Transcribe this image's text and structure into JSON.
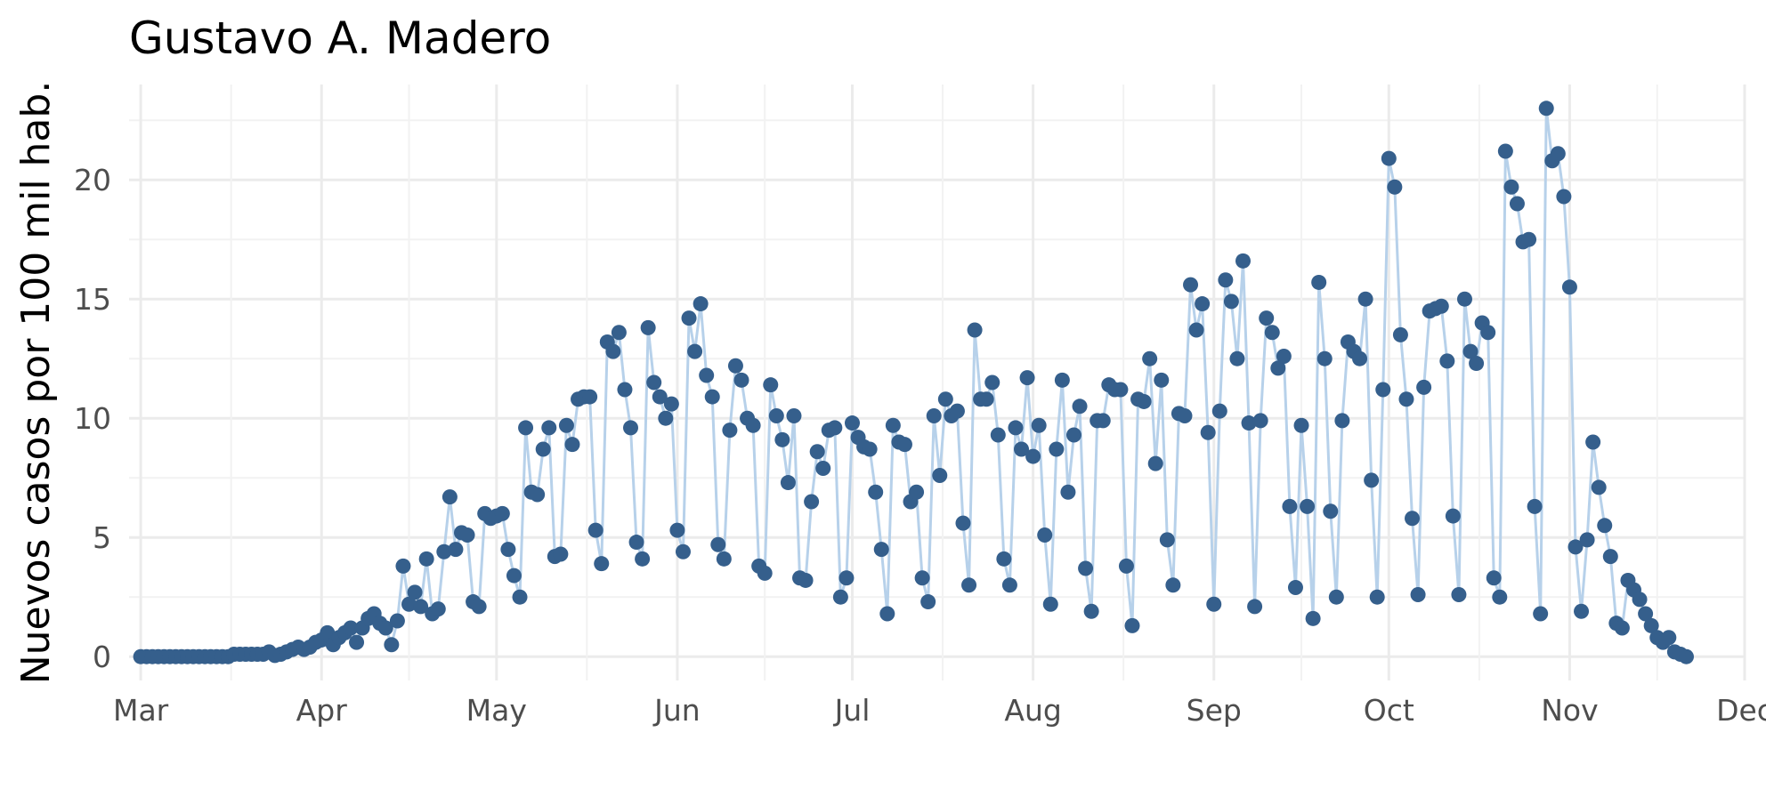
{
  "chart_data": {
    "type": "line",
    "title": "Gustavo A. Madero",
    "xlabel": "",
    "ylabel": "Nuevos casos por 100 mil hab.",
    "x_tick_labels": [
      "Mar",
      "Apr",
      "May",
      "Jun",
      "Jul",
      "Aug",
      "Sep",
      "Oct",
      "Nov",
      "Dec"
    ],
    "y_ticks": [
      0,
      5,
      10,
      15,
      20
    ],
    "ylim": [
      -1,
      24
    ],
    "x_start": "2020-02-28",
    "x_end": "2020-12-01",
    "grid": true,
    "legend": "none",
    "line_color": "#b7d1ea",
    "point_color": "#355f8c",
    "series": [
      {
        "start_date": "2020-03-01",
        "values": [
          0,
          0,
          0,
          0,
          0,
          0,
          0,
          0,
          0,
          0,
          0,
          0,
          0,
          0,
          0,
          0,
          0.1,
          0.1,
          0.1,
          0.1,
          0.1,
          0.1,
          0.2,
          0.05,
          0.1,
          0.2,
          0.3,
          0.4,
          0.3,
          0.4,
          0.6,
          0.7,
          1.0,
          0.5,
          0.8,
          1.0,
          1.2,
          0.6,
          1.2,
          1.6,
          1.8,
          1.4,
          1.2,
          0.5,
          1.5,
          3.8,
          2.2,
          2.7,
          2.1,
          4.1,
          1.8,
          2.0,
          4.4,
          6.7,
          4.5,
          5.2,
          5.1,
          2.3,
          2.1,
          6.0,
          5.8,
          5.9,
          6.0,
          4.5,
          3.4,
          2.5,
          9.6,
          6.9,
          6.8,
          8.7,
          9.6,
          4.2,
          4.3,
          9.7,
          8.9,
          10.8,
          10.9,
          10.9,
          5.3,
          3.9,
          13.2,
          12.8,
          13.6,
          11.2,
          9.6,
          4.8,
          4.1,
          13.8,
          11.5,
          10.9,
          10.0,
          10.6,
          5.3,
          4.4,
          14.2,
          12.8,
          14.8,
          11.8,
          10.9,
          4.7,
          4.1,
          9.5,
          12.2,
          11.6,
          10.0,
          9.7,
          3.8,
          3.5,
          11.4,
          10.1,
          9.1,
          7.3,
          10.1,
          3.3,
          3.2,
          6.5,
          8.6,
          7.9,
          9.5,
          9.6,
          2.5,
          3.3,
          9.8,
          9.2,
          8.8,
          8.7,
          6.9,
          4.5,
          1.8,
          9.7,
          9.0,
          8.9,
          6.5,
          6.9,
          3.3,
          2.3,
          10.1,
          7.6,
          10.8,
          10.1,
          10.3,
          5.6,
          3.0,
          13.7,
          10.8,
          10.8,
          11.5,
          9.3,
          4.1,
          3.0,
          9.6,
          8.7,
          11.7,
          8.4,
          9.7,
          5.1,
          2.2,
          8.7,
          11.6,
          6.9,
          9.3,
          10.5,
          3.7,
          1.9,
          9.9,
          9.9,
          11.4,
          11.2,
          11.2,
          3.8,
          1.3,
          10.8,
          10.7,
          12.5,
          8.1,
          11.6,
          4.9,
          3.0,
          10.2,
          10.1,
          15.6,
          13.7,
          14.8,
          9.4,
          2.2,
          10.3,
          15.8,
          14.9,
          12.5,
          16.6,
          9.8,
          2.1,
          9.9,
          14.2,
          13.6,
          12.1,
          12.6,
          6.3,
          2.9,
          9.7,
          6.3,
          1.6,
          15.7,
          12.5,
          6.1,
          2.5,
          9.9,
          13.2,
          12.8,
          12.5,
          15.0,
          7.4,
          2.5,
          11.2,
          20.9,
          19.7,
          13.5,
          10.8,
          5.8,
          2.6,
          11.3,
          14.5,
          14.6,
          14.7,
          12.4,
          5.9,
          2.6,
          15.0,
          12.8,
          12.3,
          14.0,
          13.6,
          3.3,
          2.5,
          21.2,
          19.7,
          19.0,
          17.4,
          17.5,
          6.3,
          1.8,
          23.0,
          20.8,
          21.1,
          19.3,
          15.5,
          4.6,
          1.9,
          4.9,
          9.0,
          7.1,
          5.5,
          4.2,
          1.4,
          1.2,
          3.2,
          2.8,
          2.4,
          1.8,
          1.3,
          0.8,
          0.6,
          0.8,
          0.2,
          0.1,
          0.0
        ]
      }
    ]
  }
}
